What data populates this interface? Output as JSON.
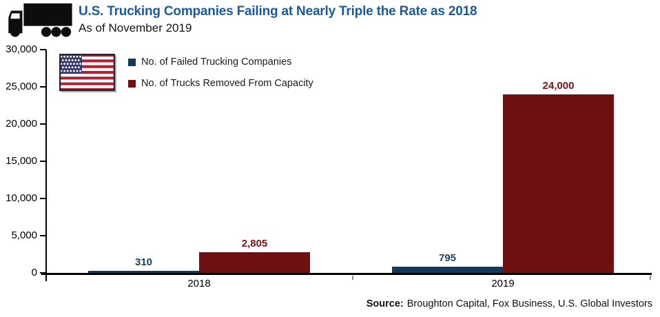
{
  "header": {
    "title": "U.S. Trucking Companies Failing at Nearly Triple the Rate as 2018",
    "subtitle": "As of November 2019"
  },
  "icons": {
    "truck": "truck-icon",
    "flag": "us-flag-icon"
  },
  "legend": {
    "items": [
      {
        "label": "No. of Failed Trucking Companies",
        "color": "#113a5d"
      },
      {
        "label": "No. of Trucks Removed From Capacity",
        "color": "#6e1011"
      }
    ]
  },
  "chart_data": {
    "type": "bar",
    "title": "U.S. Trucking Companies Failing at Nearly Triple the Rate as 2018",
    "subtitle": "As of November 2019",
    "categories": [
      "2018",
      "2019"
    ],
    "series": [
      {
        "name": "No. of Failed Trucking Companies",
        "color": "#113a5d",
        "label_color": "#1b3f5e",
        "values": [
          310,
          795
        ],
        "value_labels": [
          "310",
          "795"
        ]
      },
      {
        "name": "No. of Trucks Removed From Capacity",
        "color": "#6e1011",
        "label_color": "#7a1212",
        "values": [
          2805,
          24000
        ],
        "value_labels": [
          "2,805",
          "24,000"
        ]
      }
    ],
    "ylim": [
      0,
      30000
    ],
    "ytick_labels": [
      "0",
      "5,000",
      "10,000",
      "15,000",
      "20,000",
      "25,000",
      "30,000"
    ],
    "grid": false,
    "legend_position": "top-left"
  },
  "source": {
    "label": "Source:",
    "text": "Broughton Capital, Fox Business, U.S. Global Investors"
  },
  "colors": {
    "title_blue": "#1a5a99",
    "bar_blue": "#113a5d",
    "bar_red": "#6e1011",
    "axis_black": "#000000"
  }
}
